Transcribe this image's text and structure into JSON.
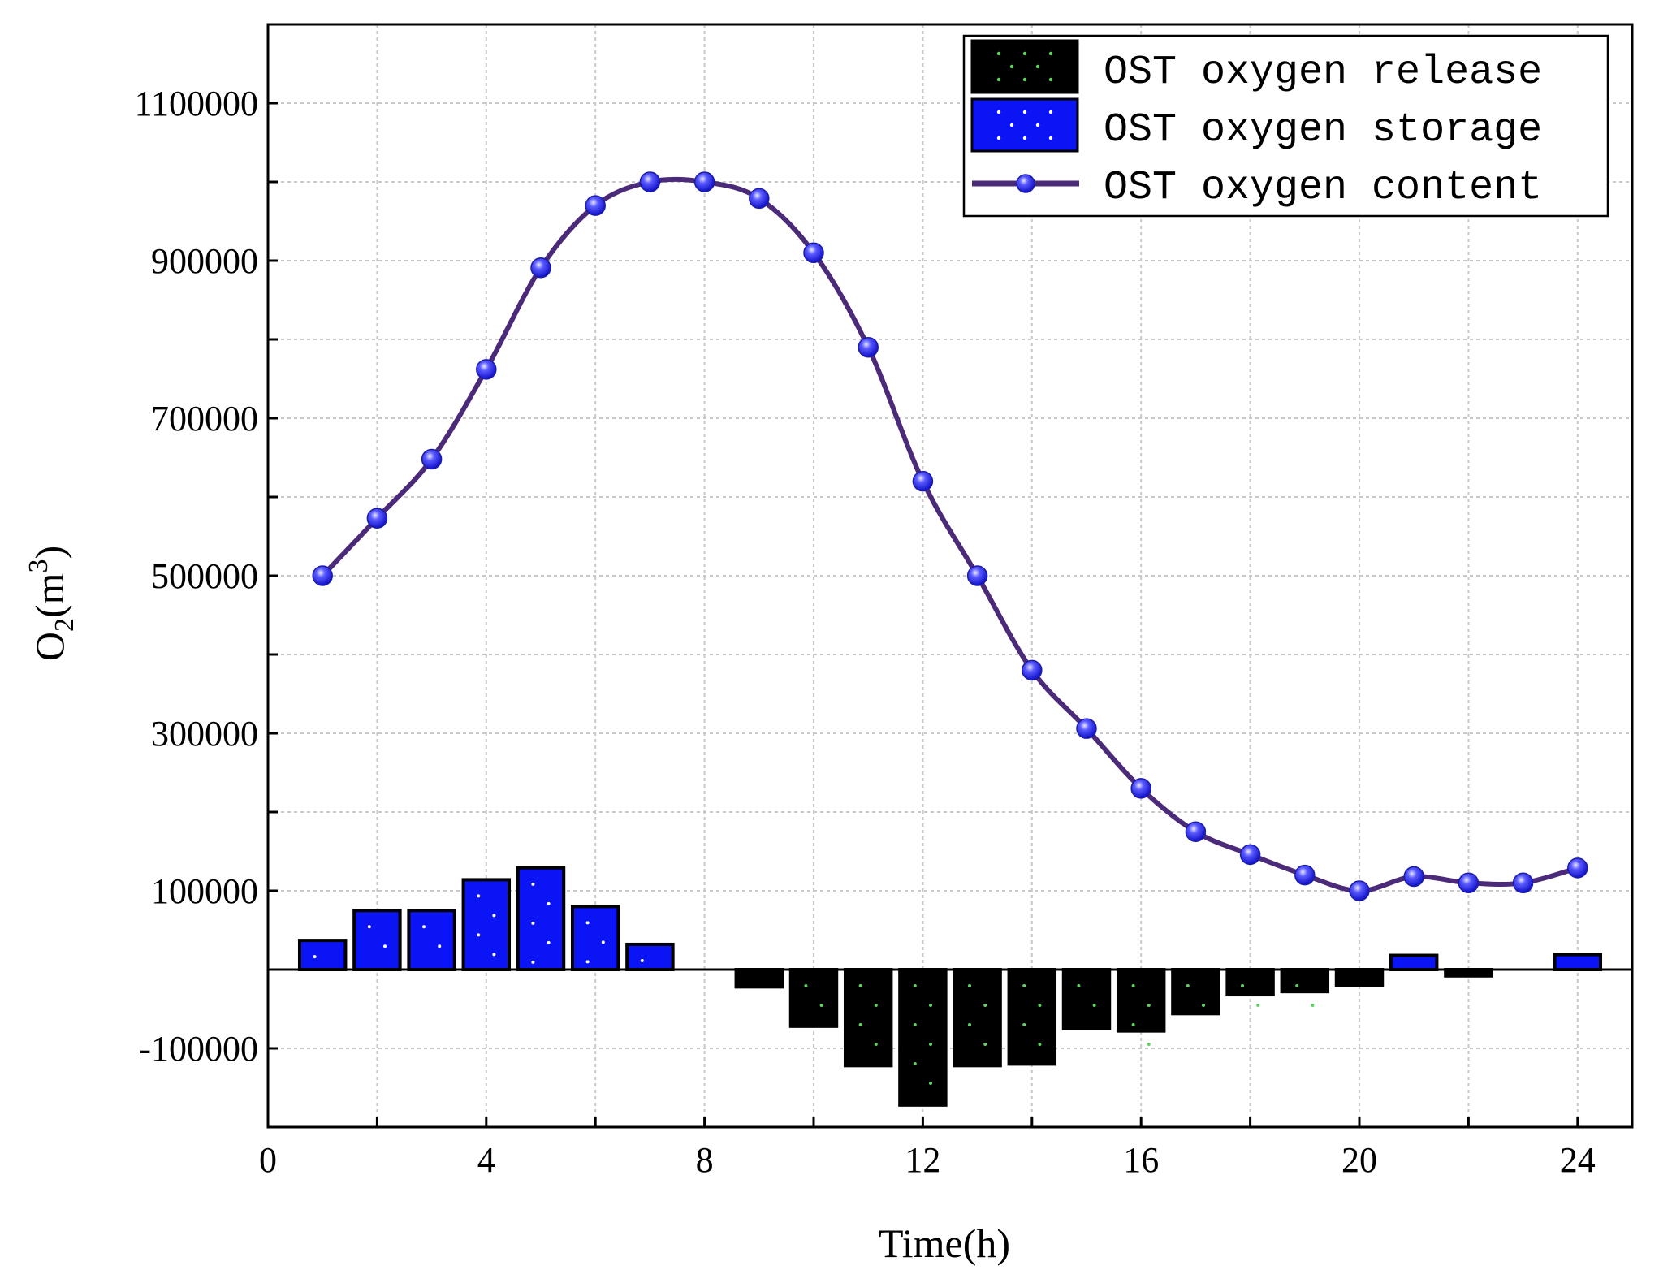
{
  "chart_data": {
    "type": "bar+line",
    "xlabel": "Time(h)",
    "ylabel": {
      "base": "O",
      "sub": "2",
      "unit": "(m",
      "sup": "3",
      "close": ")"
    },
    "xlim": [
      0,
      25
    ],
    "ylim": [
      -200000,
      1200000
    ],
    "xticks": [
      0,
      4,
      8,
      12,
      16,
      20,
      24
    ],
    "yticks": [
      -100000,
      100000,
      300000,
      500000,
      700000,
      900000,
      1100000
    ],
    "ytick_labels": [
      "-100000",
      "100000",
      "300000",
      "500000",
      "700000",
      "900000",
      "1100000"
    ],
    "grid": true,
    "legend_position": "top-right",
    "series": [
      {
        "name": "OST oxygen release",
        "type": "bar",
        "color": "#000000",
        "dot_color": "#5fd35f",
        "x": [
          9,
          10,
          11,
          12,
          13,
          14,
          15,
          16,
          17,
          18,
          19,
          20,
          22
        ],
        "values": [
          -22000,
          -72000,
          -122000,
          -172000,
          -122000,
          -120000,
          -75000,
          -78000,
          -56000,
          -32000,
          -28000,
          -20000,
          -8000
        ]
      },
      {
        "name": "OST oxygen storage",
        "type": "bar",
        "color": "#0a14f5",
        "dot_color": "#ffffff",
        "x": [
          1,
          2,
          3,
          4,
          5,
          6,
          7,
          21,
          24
        ],
        "values": [
          37000,
          75000,
          75000,
          114000,
          129000,
          80000,
          32000,
          18000,
          19000
        ]
      },
      {
        "name": "OST oxygen content",
        "type": "line",
        "color": "#4b2a7a",
        "marker_color": "#2a2af0",
        "x": [
          1,
          2,
          3,
          4,
          5,
          6,
          7,
          8,
          9,
          10,
          11,
          12,
          13,
          14,
          15,
          16,
          17,
          18,
          19,
          20,
          21,
          22,
          23,
          24
        ],
        "values": [
          500000,
          573000,
          648000,
          762000,
          891000,
          970000,
          1000000,
          1000000,
          979000,
          910000,
          790000,
          620000,
          500000,
          380000,
          306000,
          230000,
          175000,
          146000,
          120000,
          100000,
          118000,
          110000,
          110000,
          129000
        ]
      }
    ]
  }
}
